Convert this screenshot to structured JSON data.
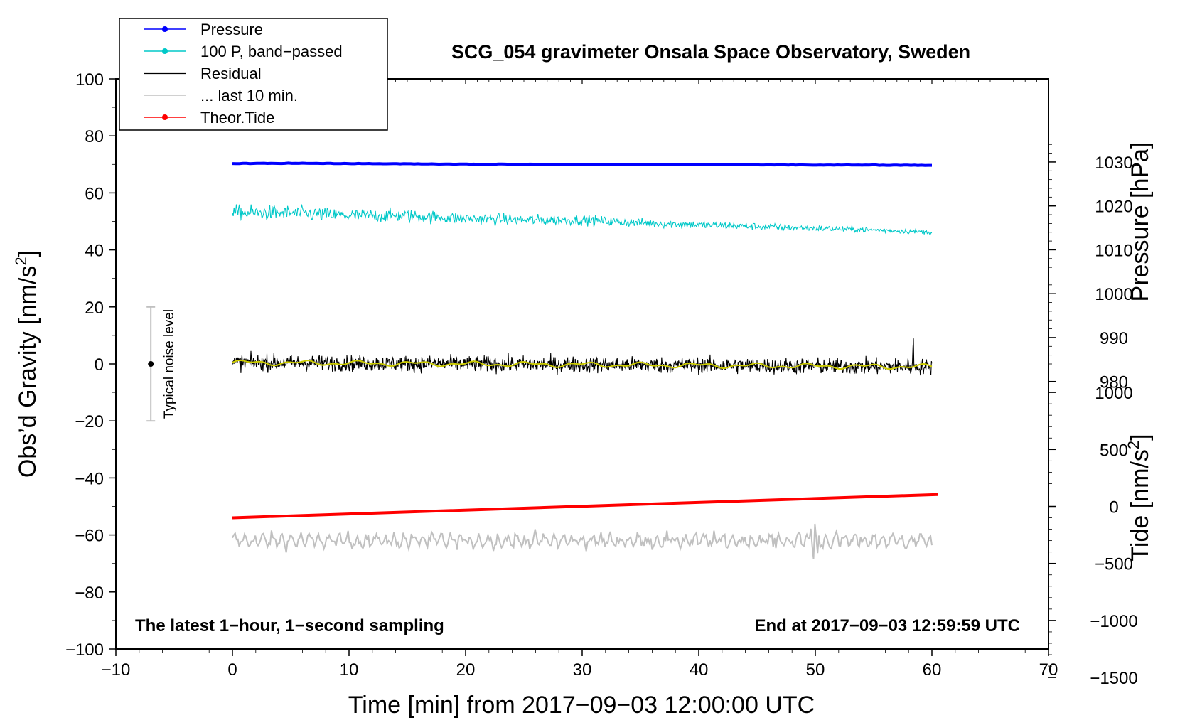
{
  "chart_data": {
    "type": "line",
    "title": "SCG_054 gravimeter Onsala Space Observatory, Sweden",
    "xlabel": "Time [min] from 2017−09−03 12:00:00 UTC",
    "ylabel_left_main": "Obs’d Gravity [nm/s",
    "ylabel_left_sup": "2",
    "ylabel_left_end": "]",
    "ylabel_right_top": "Pressure [hPa]",
    "ylabel_right_bottom_main": "Tide [nm/s",
    "ylabel_right_bottom_sup": "2",
    "ylabel_right_bottom_end": "]",
    "xlim": [
      -10,
      70
    ],
    "ylim": [
      -100,
      100
    ],
    "x_ticks": [
      -10,
      0,
      10,
      20,
      30,
      40,
      50,
      60,
      70
    ],
    "x_tick_labels": [
      "−10",
      "0",
      "10",
      "20",
      "30",
      "40",
      "50",
      "60",
      "70"
    ],
    "y_ticks": [
      -100,
      -80,
      -60,
      -40,
      -20,
      0,
      20,
      40,
      60,
      80,
      100
    ],
    "y_tick_labels": [
      "−100",
      "−80",
      "−60",
      "−40",
      "−20",
      "0",
      "20",
      "40",
      "60",
      "80",
      "100"
    ],
    "pressure_axis": {
      "ticks": [
        980,
        990,
        1000,
        1010,
        1020,
        1030
      ],
      "tick_labels": [
        "980",
        "990",
        "1000",
        "1010",
        "1020",
        "1030"
      ],
      "map": {
        "at_gravity": 0,
        "gravity_per_hPa": 1.54,
        "pressure_at": 984
      }
    },
    "tide_axis": {
      "ticks": [
        -1500,
        -1000,
        -500,
        0,
        500,
        1000
      ],
      "tick_labels": [
        "−1500",
        "−1000",
        "−500",
        "0",
        "500",
        "1000"
      ],
      "map": {
        "gravity_per_nms2": 0.04,
        "gravity_at_zero": -50
      }
    },
    "legend_position": "top-left",
    "series": [
      {
        "name": "Pressure",
        "color": "#0000ff",
        "style": "line-marker",
        "x": [
          0,
          5,
          10,
          20,
          30,
          40,
          50,
          60
        ],
        "y": [
          70.3,
          70.4,
          70.3,
          70.1,
          70.0,
          69.9,
          69.8,
          69.7
        ]
      },
      {
        "name": "100 P, band−passed",
        "color": "#00c8c8",
        "style": "line-marker",
        "x": [
          0,
          5,
          10,
          15,
          20,
          25,
          30,
          35,
          40,
          45,
          50,
          55,
          60
        ],
        "y": [
          53,
          53,
          52,
          52,
          51,
          50.5,
          50.5,
          49.5,
          48.8,
          48.2,
          47.6,
          47,
          46.2
        ]
      },
      {
        "name": "Residual",
        "color": "#000000",
        "style": "line",
        "x": [
          0,
          60
        ],
        "y": [
          0.5,
          -1.0
        ]
      },
      {
        "name": "... last 10 min.",
        "color": "#c0c0c0",
        "style": "line",
        "x": [
          0,
          60
        ],
        "y": [
          -62,
          -62
        ]
      },
      {
        "name": "Theor.Tide",
        "color": "#ff0000",
        "style": "line-marker",
        "x": [
          0,
          60.5
        ],
        "y": [
          -54,
          -45.8
        ]
      }
    ],
    "smoothed_residual_color": "#cccc00",
    "noise_bar": {
      "label": "Typical noise level",
      "x": -7,
      "y": 0,
      "half_range": 20
    },
    "annotations": {
      "bottom_left": "The latest 1−hour, 1−second sampling",
      "bottom_right": "End at 2017−09−03 12:59:59 UTC"
    }
  }
}
